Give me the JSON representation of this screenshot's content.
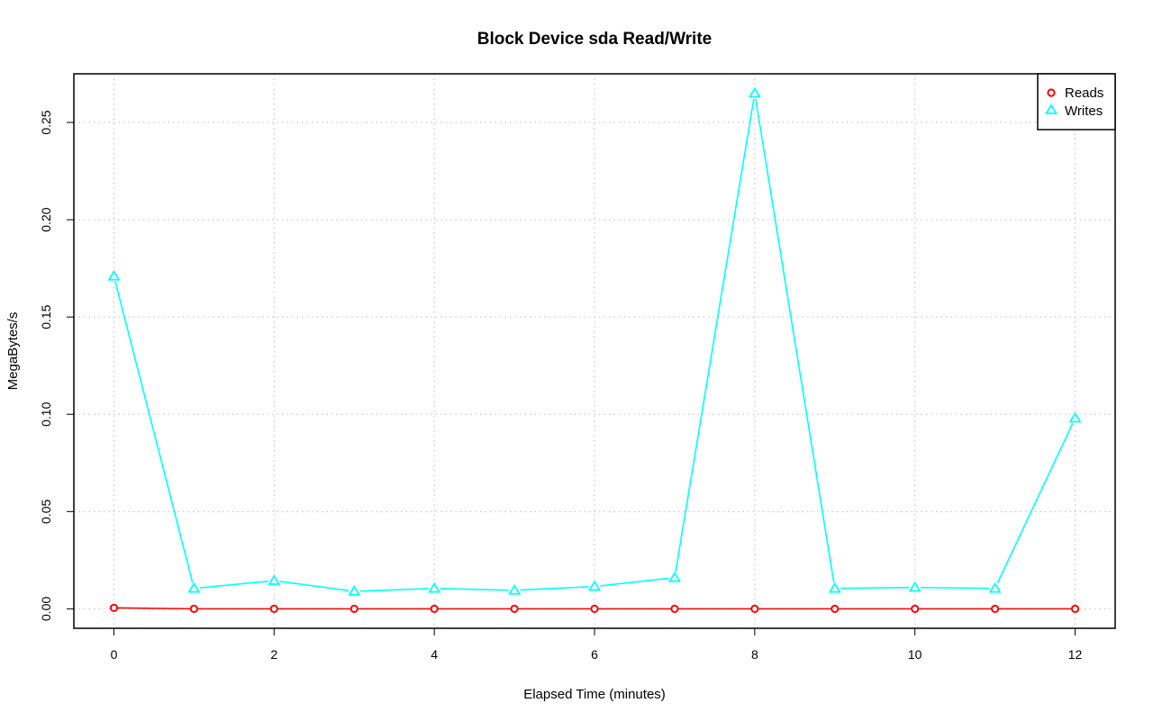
{
  "chart_data": {
    "type": "line",
    "title": "Block Device sda Read/Write",
    "xlabel": "Elapsed Time (minutes)",
    "ylabel": "MegaBytes/s",
    "xlim": [
      -0.5,
      12.5
    ],
    "ylim": [
      -0.01,
      0.275
    ],
    "xticks": [
      0,
      2,
      4,
      6,
      8,
      10,
      12
    ],
    "yticks": [
      0.0,
      0.05,
      0.1,
      0.15,
      0.2,
      0.25
    ],
    "ytick_labels": [
      "0.00",
      "0.05",
      "0.10",
      "0.15",
      "0.20",
      "0.25"
    ],
    "grid": true,
    "legend_position": "top-right",
    "x": [
      0,
      1,
      2,
      3,
      4,
      5,
      6,
      7,
      8,
      9,
      10,
      11,
      12
    ],
    "series": [
      {
        "name": "Reads",
        "color": "#ff0000",
        "marker": "circle",
        "values": [
          0.0005,
          0.0,
          0.0,
          0.0,
          0.0,
          0.0,
          0.0,
          0.0,
          0.0,
          0.0,
          0.0,
          0.0,
          0.0
        ]
      },
      {
        "name": "Writes",
        "color": "#00ffff",
        "marker": "triangle",
        "values": [
          0.171,
          0.0105,
          0.0145,
          0.009,
          0.0105,
          0.0095,
          0.0115,
          0.016,
          0.265,
          0.0105,
          0.011,
          0.0105,
          0.098
        ]
      }
    ]
  }
}
